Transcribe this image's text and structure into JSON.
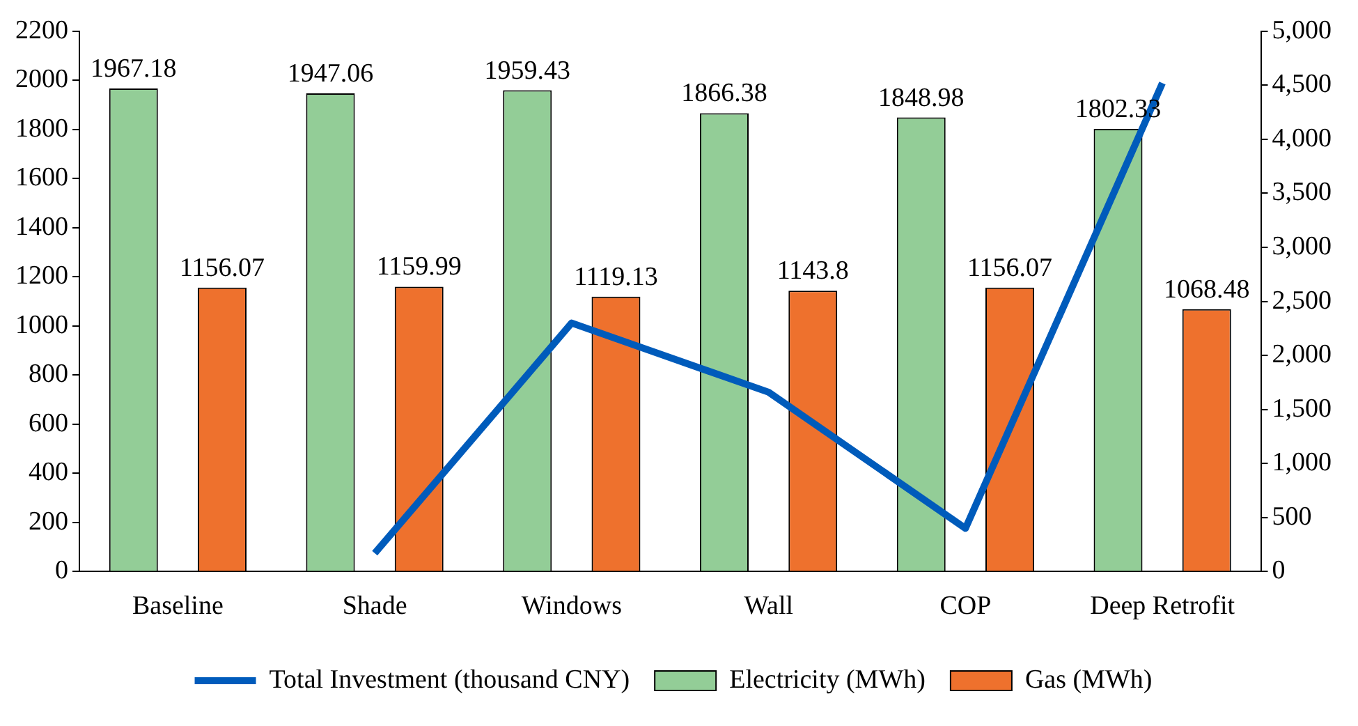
{
  "chart_data": {
    "type": "bar",
    "categories": [
      "Baseline",
      "Shade",
      "Windows",
      "Wall",
      "COP",
      "Deep Retrofit"
    ],
    "series": [
      {
        "name": "Electricity (MWh)",
        "color": "#93cd97",
        "values": [
          1967.18,
          1947.06,
          1959.43,
          1866.38,
          1848.98,
          1802.33
        ],
        "value_labels": [
          "1967.18",
          "1947.06",
          "1959.43",
          "1866.38",
          "1848.98",
          "1802.33"
        ]
      },
      {
        "name": "Gas (MWh)",
        "color": "#ee712d",
        "values": [
          1156.07,
          1159.99,
          1119.13,
          1143.8,
          1156.07,
          1068.48
        ],
        "value_labels": [
          "1156.07",
          "1159.99",
          "1119.13",
          "1143.8",
          "1156.07",
          "1068.48"
        ]
      },
      {
        "name": "Total Investment (thousand CNY)",
        "type": "line",
        "axis": "y2",
        "color": "#005bbb",
        "values": [
          null,
          170,
          2300,
          1660,
          400,
          4520
        ]
      }
    ],
    "ylim": [
      0,
      2200
    ],
    "yticks": [
      0,
      200,
      400,
      600,
      800,
      1000,
      1200,
      1400,
      1600,
      1800,
      2000,
      2200
    ],
    "y2lim": [
      0,
      5000
    ],
    "y2ticks": [
      {
        "value": 0,
        "label": "0"
      },
      {
        "value": 500,
        "label": "500"
      },
      {
        "value": 1000,
        "label": "1,000"
      },
      {
        "value": 1500,
        "label": "1,500"
      },
      {
        "value": 2000,
        "label": "2,000"
      },
      {
        "value": 2500,
        "label": "2,500"
      },
      {
        "value": 3000,
        "label": "3,000"
      },
      {
        "value": 3500,
        "label": "3,500"
      },
      {
        "value": 4000,
        "label": "4,000"
      },
      {
        "value": 4500,
        "label": "4,500"
      },
      {
        "value": 5000,
        "label": "5,000"
      }
    ],
    "grid": false,
    "legend": "bottom"
  }
}
